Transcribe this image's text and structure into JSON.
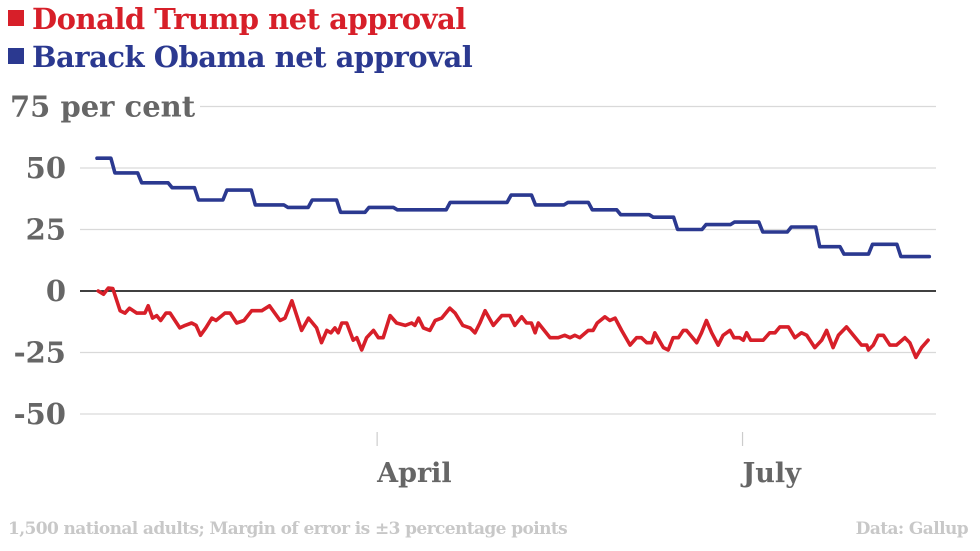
{
  "chart_data": {
    "type": "line",
    "title": "",
    "xlabel": "",
    "ylabel": "per cent",
    "x_unit": "days since inauguration",
    "xlim": [
      2,
      207
    ],
    "ylim": [
      -50,
      75
    ],
    "y_ticks": [
      {
        "value": 75,
        "label": "75 per cent"
      },
      {
        "value": 50,
        "label": "50"
      },
      {
        "value": 25,
        "label": "25"
      },
      {
        "value": 0,
        "label": "0"
      },
      {
        "value": -25,
        "label": "-25"
      },
      {
        "value": -50,
        "label": "-50"
      }
    ],
    "x_ticks": [
      {
        "value": 71,
        "label": "April"
      },
      {
        "value": 161,
        "label": "July"
      }
    ],
    "grid": true,
    "legend_position": "top-left",
    "series": [
      {
        "name": "Donald Trump net approval",
        "color": "#d71f29",
        "style": "line",
        "x": [
          2.3,
          3.6,
          4.8,
          5.9,
          7.7,
          8.9,
          10,
          11.8,
          13.8,
          14.6,
          15.7,
          16.7,
          17.7,
          19,
          20,
          22.4,
          23.7,
          25.3,
          26.4,
          27.5,
          28.8,
          30.3,
          31.3,
          33.5,
          34.8,
          36.4,
          38.2,
          40.1,
          42.6,
          44.5,
          47.1,
          48.3,
          50,
          52.4,
          54.1,
          56.1,
          57.3,
          58.6,
          59.6,
          60.6,
          61.4,
          62.3,
          63.5,
          65.1,
          66,
          67.2,
          68.4,
          70.1,
          71.3,
          72.5,
          74.2,
          75.8,
          77.9,
          79.5,
          80.3,
          81.2,
          82.4,
          84,
          85.3,
          86.9,
          88.9,
          90.2,
          92.1,
          93.9,
          95.1,
          96.3,
          97.6,
          99.6,
          101.7,
          103.7,
          104.9,
          106.6,
          107.8,
          109,
          109.9,
          110.7,
          113.6,
          115.6,
          117.2,
          118.5,
          119.7,
          120.9,
          123,
          124.2,
          125.2,
          127.1,
          128.3,
          129.6,
          131.2,
          133.3,
          134.9,
          136.1,
          137.4,
          138.6,
          139.4,
          141.5,
          142.7,
          143.9,
          145.2,
          146.4,
          147.2,
          149.7,
          150.9,
          152.1,
          153.4,
          155,
          156.2,
          157.9,
          158.9,
          160.3,
          161.2,
          162,
          163,
          166.1,
          167.7,
          169,
          170.2,
          172.3,
          173.9,
          175.5,
          176.8,
          178.8,
          180.5,
          181.7,
          183.3,
          184.6,
          186.6,
          188.3,
          190.3,
          191.6,
          192,
          193.2,
          194.4,
          195.7,
          197.3,
          198.9,
          201,
          202.2,
          203.7,
          205.1,
          206.7
        ],
        "y": [
          0,
          -1.3,
          1.2,
          1,
          -8,
          -9,
          -7,
          -9,
          -9,
          -6,
          -11,
          -10,
          -12,
          -9,
          -9,
          -15,
          -14,
          -13,
          -14,
          -18,
          -15,
          -11,
          -12,
          -9,
          -9,
          -13,
          -12,
          -8,
          -8,
          -6,
          -12,
          -11,
          -4,
          -16,
          -11,
          -15,
          -21,
          -16,
          -17,
          -15,
          -17,
          -13,
          -13,
          -20,
          -19,
          -24,
          -19,
          -16,
          -19,
          -19,
          -10,
          -13,
          -14,
          -13,
          -14,
          -11,
          -15,
          -16,
          -12,
          -11,
          -7,
          -9,
          -14,
          -15,
          -17,
          -13,
          -8,
          -14,
          -10,
          -10,
          -14,
          -10.5,
          -13,
          -13,
          -17,
          -13,
          -19,
          -19,
          -18,
          -19,
          -18,
          -19,
          -16,
          -16,
          -13,
          -10.5,
          -12,
          -11,
          -16,
          -22,
          -19,
          -19,
          -21,
          -21,
          -17,
          -23,
          -24,
          -19,
          -19,
          -16,
          -16,
          -21,
          -17,
          -12,
          -17,
          -22,
          -18,
          -16,
          -19,
          -19,
          -20,
          -17,
          -20,
          -20,
          -17,
          -17,
          -14.6,
          -14.6,
          -19,
          -17,
          -18,
          -23,
          -20,
          -16,
          -23,
          -18,
          -14.6,
          -18,
          -22,
          -22,
          -24,
          -22,
          -18,
          -18,
          -22,
          -22,
          -19,
          -21,
          -27,
          -23,
          -20
        ]
      },
      {
        "name": "Barack Obama net approval",
        "color": "#2b3990",
        "style": "step",
        "x": [
          2,
          6.4,
          13,
          20.5,
          27,
          34,
          41,
          49,
          55,
          62,
          69,
          76,
          89,
          104,
          110,
          118,
          124,
          131,
          139,
          145,
          152,
          159,
          166,
          173,
          180,
          186,
          193,
          200,
          207
        ],
        "y": [
          54,
          48,
          44,
          42,
          37,
          41,
          35,
          34,
          37,
          32,
          34,
          33,
          36,
          39,
          35,
          36,
          33,
          31,
          30,
          25,
          27,
          28,
          24,
          26,
          18,
          15,
          19,
          14,
          14
        ]
      }
    ]
  },
  "footer": {
    "note": "1,500 national adults; Margin of error is ±3 percentage points",
    "source": "Data: Gallup"
  },
  "colors": {
    "gridline": "#d9d9d9",
    "zero_line": "#000000",
    "axis_text": "#666666",
    "footer_text": "#c8c8c8"
  }
}
